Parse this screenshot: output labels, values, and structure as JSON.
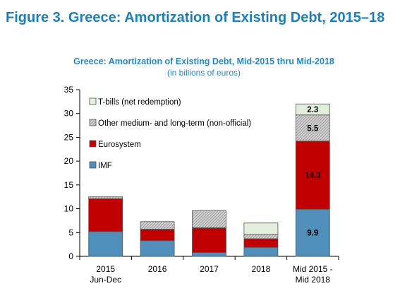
{
  "figure_title": "Figure 3. Greece: Amortization of Existing Debt, 2015–18",
  "chart_data": {
    "type": "bar",
    "stacked": true,
    "title": "Greece: Amortization of Existing Debt, Mid-2015 thru Mid-2018",
    "subtitle": "(in billions of euros)",
    "xlabel": "",
    "ylabel": "",
    "ylim": [
      0,
      35
    ],
    "yticks": [
      0,
      5,
      10,
      15,
      20,
      25,
      30,
      35
    ],
    "categories": [
      [
        "2015",
        "Jun-Dec"
      ],
      [
        "2016"
      ],
      [
        "2017"
      ],
      [
        "2018"
      ],
      [
        "Mid 2015 -",
        "Mid 2018"
      ]
    ],
    "series": [
      {
        "name": "IMF",
        "color": "#4f8fba",
        "values": [
          5.2,
          3.3,
          0.8,
          1.9,
          9.9
        ],
        "labels": [
          null,
          null,
          null,
          null,
          "9.9"
        ],
        "label_color": "#000000"
      },
      {
        "name": "Eurosystem",
        "color": "#c00000",
        "values": [
          6.9,
          2.4,
          5.2,
          1.8,
          14.3
        ],
        "labels": [
          null,
          null,
          null,
          null,
          "14.3"
        ],
        "label_color": "#000000"
      },
      {
        "name": "Other medium- and long-term (non-official)",
        "color": "#c8c8c8",
        "hatched": true,
        "values": [
          0.4,
          1.6,
          3.6,
          0.9,
          5.5
        ],
        "labels": [
          null,
          null,
          null,
          null,
          "5.5"
        ],
        "label_color": "#000000"
      },
      {
        "name": "T-bills (net redemption)",
        "color": "#e3eedc",
        "values": [
          0,
          0,
          0,
          2.4,
          2.3
        ],
        "labels": [
          null,
          null,
          null,
          null,
          "2.3"
        ],
        "label_color": "#000000"
      }
    ],
    "legend_order": [
      "T-bills (net redemption)",
      "Other medium- and long-term (non-official)",
      "Eurosystem",
      "IMF"
    ],
    "legend_position": "top-left",
    "grid": false
  }
}
